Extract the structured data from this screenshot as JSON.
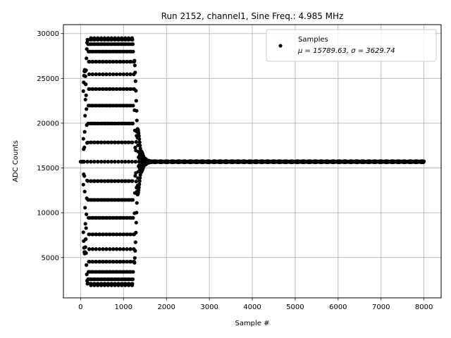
{
  "chart_data": {
    "type": "scatter",
    "title": "Run 2152, channel1, Sine Freq.: 4.985 MHz",
    "xlabel": "Sample #",
    "ylabel": "ADC Counts",
    "xlim": [
      -400,
      8400
    ],
    "ylim": [
      500,
      31000
    ],
    "x_ticks": [
      0,
      1000,
      2000,
      3000,
      4000,
      5000,
      6000,
      7000,
      8000
    ],
    "y_ticks": [
      5000,
      10000,
      15000,
      20000,
      25000,
      30000
    ],
    "grid": true,
    "legend_position": "top-right",
    "legend": {
      "label": "Samples",
      "stats": "μ = 15789.63, σ = 3629.74"
    },
    "series": [
      {
        "name": "Samples",
        "color": "#000000",
        "mean": 15789.63,
        "std": 3629.74,
        "baseline": 15700,
        "sine_amplitude_max": 13800,
        "signal_samples": [
          0,
          1700
        ],
        "settled_samples": [
          1700,
          8000
        ]
      }
    ]
  }
}
